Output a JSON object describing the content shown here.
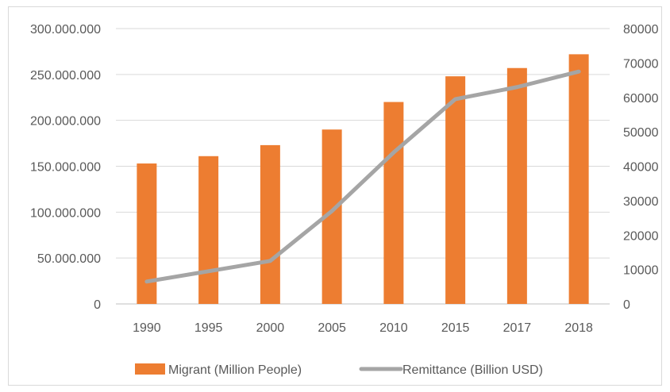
{
  "chart_data": {
    "type": "bar+line",
    "title": "",
    "categories": [
      "1990",
      "1995",
      "2000",
      "2005",
      "2010",
      "2015",
      "2017",
      "2018"
    ],
    "series": [
      {
        "name": "Migrant (Million People)",
        "type": "bar",
        "axis": "left",
        "color": "#ED7D31",
        "values": [
          153000000,
          161000000,
          173000000,
          190000000,
          220000000,
          248000000,
          257000000,
          272000000
        ]
      },
      {
        "name": "Remittance (Billion USD)",
        "type": "line",
        "axis": "right",
        "color": "#A5A5A5",
        "values": [
          6500,
          9500,
          12500,
          27000,
          44000,
          59500,
          63000,
          67500
        ]
      }
    ],
    "y_left": {
      "ylim": [
        0,
        300000000
      ],
      "ticks": [
        "0",
        "50.000.000",
        "100.000.000",
        "150.000.000",
        "200.000.000",
        "250.000.000",
        "300.000.000"
      ]
    },
    "y_right": {
      "ylim": [
        0,
        80000
      ],
      "ticks": [
        "0",
        "10000",
        "20000",
        "30000",
        "40000",
        "50000",
        "60000",
        "70000",
        "80000"
      ]
    },
    "grid": "horizontal",
    "legend": "bottom-center",
    "colors": {
      "gridline": "#d9d9d9",
      "axis_text": "#595959"
    }
  }
}
